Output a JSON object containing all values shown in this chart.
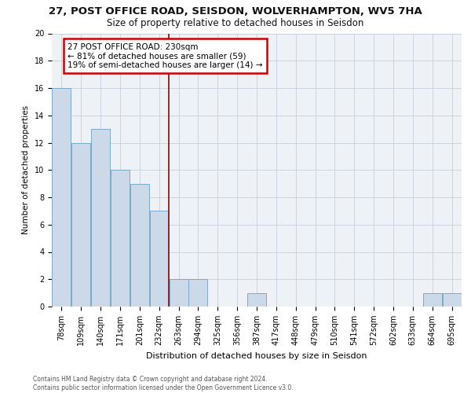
{
  "title1": "27, POST OFFICE ROAD, SEISDON, WOLVERHAMPTON, WV5 7HA",
  "title2": "Size of property relative to detached houses in Seisdon",
  "xlabel": "Distribution of detached houses by size in Seisdon",
  "ylabel": "Number of detached properties",
  "categories": [
    "78sqm",
    "109sqm",
    "140sqm",
    "171sqm",
    "201sqm",
    "232sqm",
    "263sqm",
    "294sqm",
    "325sqm",
    "356sqm",
    "387sqm",
    "417sqm",
    "448sqm",
    "479sqm",
    "510sqm",
    "541sqm",
    "572sqm",
    "602sqm",
    "633sqm",
    "664sqm",
    "695sqm"
  ],
  "values": [
    16,
    12,
    13,
    10,
    9,
    7,
    2,
    2,
    0,
    0,
    1,
    0,
    0,
    0,
    0,
    0,
    0,
    0,
    0,
    1,
    1
  ],
  "bar_color": "#ccd9e8",
  "bar_edge_color": "#7aaac8",
  "vline_x_idx": 5,
  "vline_color": "#8b1a1a",
  "annotation_text": "27 POST OFFICE ROAD: 230sqm\n← 81% of detached houses are smaller (59)\n19% of semi-detached houses are larger (14) →",
  "annotation_box_color": "#ffffff",
  "annotation_box_edge": "#cc0000",
  "ylim": [
    0,
    20
  ],
  "yticks": [
    0,
    2,
    4,
    6,
    8,
    10,
    12,
    14,
    16,
    18,
    20
  ],
  "footer": "Contains HM Land Registry data © Crown copyright and database right 2024.\nContains public sector information licensed under the Open Government Licence v3.0.",
  "bg_color": "#eef2f7",
  "title1_fontsize": 9.5,
  "title2_fontsize": 8.5,
  "xlabel_fontsize": 8,
  "ylabel_fontsize": 7.5,
  "tick_fontsize": 7,
  "annot_fontsize": 7.5,
  "footer_fontsize": 5.5
}
